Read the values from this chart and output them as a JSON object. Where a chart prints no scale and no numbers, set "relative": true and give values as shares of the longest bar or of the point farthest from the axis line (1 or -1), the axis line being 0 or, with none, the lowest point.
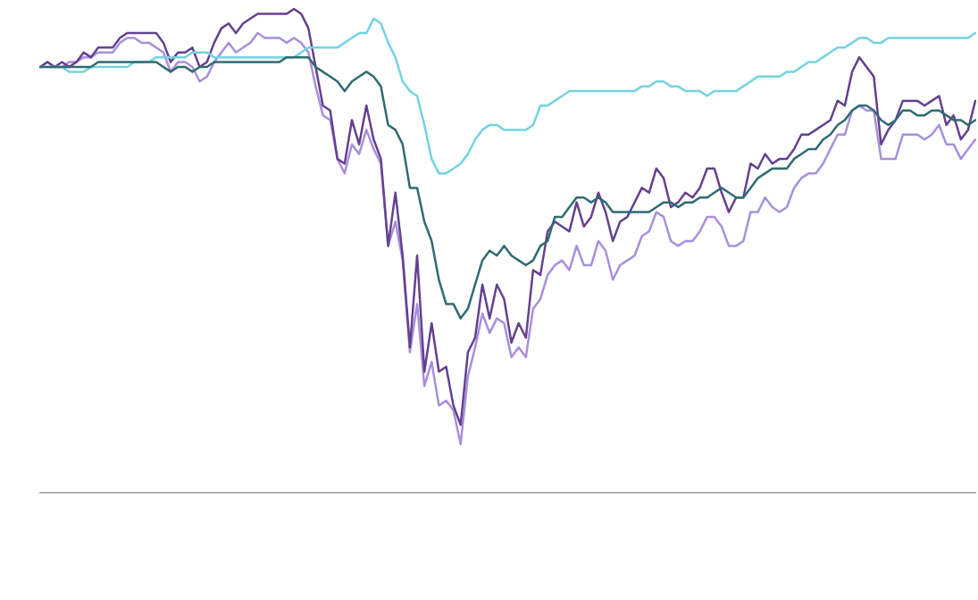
{
  "chart_data": {
    "type": "line",
    "relative": true,
    "grid": false,
    "legend": false,
    "marker": "none",
    "line_style": "solid",
    "categories": [
      null,
      null,
      null,
      null,
      null,
      null,
      null,
      null,
      null,
      null,
      null,
      null,
      null,
      null,
      null,
      null,
      null,
      null,
      null,
      null,
      null,
      null,
      null,
      null,
      null,
      null,
      null,
      null,
      null,
      null,
      null,
      null,
      null,
      null,
      null,
      null,
      null,
      null,
      null,
      null,
      null,
      null,
      null,
      null,
      null,
      null,
      null,
      null,
      null,
      null,
      null,
      null,
      null,
      null,
      null,
      null,
      null,
      null,
      null,
      null,
      null,
      null,
      null,
      null,
      null,
      null,
      null,
      null,
      null,
      null,
      null,
      null,
      null,
      null,
      null,
      null,
      null,
      null,
      null,
      null,
      null,
      null,
      null,
      null,
      null,
      null,
      null,
      null,
      null,
      null,
      null,
      null,
      null,
      null,
      null,
      null,
      null,
      null,
      null,
      null,
      null,
      null,
      null,
      null,
      null,
      null,
      null,
      null,
      null,
      null,
      null,
      null,
      null,
      null,
      null,
      null,
      null,
      null,
      null,
      null,
      null,
      null,
      null,
      null,
      null,
      null,
      null,
      null,
      null,
      null
    ],
    "series": [
      {
        "color": "#a98fdc",
        "values": [
          0.88,
          0.89,
          0.88,
          0.88,
          0.89,
          0.89,
          0.9,
          0.9,
          0.91,
          0.91,
          0.91,
          0.93,
          0.94,
          0.94,
          0.93,
          0.93,
          0.92,
          0.91,
          0.87,
          0.89,
          0.89,
          0.88,
          0.85,
          0.86,
          0.89,
          0.91,
          0.93,
          0.91,
          0.92,
          0.93,
          0.95,
          0.94,
          0.94,
          0.94,
          0.93,
          0.94,
          0.93,
          0.91,
          0.84,
          0.78,
          0.77,
          0.69,
          0.66,
          0.72,
          0.7,
          0.75,
          0.71,
          0.68,
          0.51,
          0.56,
          0.48,
          0.29,
          0.39,
          0.22,
          0.27,
          0.18,
          0.19,
          0.17,
          0.1,
          0.24,
          0.3,
          0.37,
          0.33,
          0.36,
          0.35,
          0.28,
          0.3,
          0.28,
          0.38,
          0.4,
          0.45,
          0.47,
          0.48,
          0.46,
          0.51,
          0.47,
          0.47,
          0.52,
          0.5,
          0.44,
          0.47,
          0.48,
          0.49,
          0.53,
          0.54,
          0.58,
          0.57,
          0.52,
          0.51,
          0.52,
          0.52,
          0.54,
          0.57,
          0.57,
          0.55,
          0.51,
          0.51,
          0.52,
          0.58,
          0.58,
          0.61,
          0.59,
          0.58,
          0.59,
          0.63,
          0.65,
          0.66,
          0.66,
          0.68,
          0.71,
          0.74,
          0.74,
          0.79,
          0.8,
          0.79,
          0.79,
          0.69,
          0.69,
          0.69,
          0.74,
          0.74,
          0.74,
          0.73,
          0.74,
          0.76,
          0.72,
          0.72,
          0.69,
          0.71,
          0.73
        ]
      },
      {
        "color": "#64418f",
        "values": [
          0.88,
          0.89,
          0.88,
          0.89,
          0.88,
          0.89,
          0.91,
          0.9,
          0.92,
          0.92,
          0.92,
          0.94,
          0.95,
          0.95,
          0.95,
          0.95,
          0.95,
          0.93,
          0.89,
          0.91,
          0.91,
          0.92,
          0.88,
          0.89,
          0.93,
          0.96,
          0.97,
          0.95,
          0.97,
          0.98,
          0.99,
          0.99,
          0.99,
          0.99,
          0.99,
          1.0,
          0.99,
          0.96,
          0.88,
          0.8,
          0.79,
          0.69,
          0.68,
          0.77,
          0.72,
          0.8,
          0.73,
          0.69,
          0.51,
          0.62,
          0.49,
          0.3,
          0.49,
          0.25,
          0.35,
          0.25,
          0.26,
          0.18,
          0.14,
          0.29,
          0.32,
          0.43,
          0.36,
          0.43,
          0.4,
          0.31,
          0.35,
          0.32,
          0.46,
          0.45,
          0.54,
          0.56,
          0.55,
          0.54,
          0.6,
          0.55,
          0.57,
          0.62,
          0.58,
          0.52,
          0.56,
          0.57,
          0.6,
          0.63,
          0.62,
          0.67,
          0.65,
          0.59,
          0.6,
          0.62,
          0.61,
          0.63,
          0.67,
          0.67,
          0.62,
          0.58,
          0.61,
          0.61,
          0.68,
          0.67,
          0.7,
          0.68,
          0.69,
          0.69,
          0.71,
          0.74,
          0.74,
          0.75,
          0.76,
          0.77,
          0.81,
          0.8,
          0.87,
          0.9,
          0.88,
          0.86,
          0.72,
          0.75,
          0.77,
          0.81,
          0.81,
          0.81,
          0.8,
          0.81,
          0.82,
          0.76,
          0.78,
          0.73,
          0.75,
          0.81
        ]
      },
      {
        "color": "#72d3e2",
        "values": [
          0.88,
          0.88,
          0.88,
          0.88,
          0.87,
          0.87,
          0.87,
          0.88,
          0.88,
          0.88,
          0.88,
          0.88,
          0.88,
          0.89,
          0.89,
          0.89,
          0.9,
          0.9,
          0.9,
          0.9,
          0.9,
          0.91,
          0.91,
          0.91,
          0.9,
          0.9,
          0.9,
          0.9,
          0.9,
          0.9,
          0.9,
          0.9,
          0.9,
          0.9,
          0.9,
          0.9,
          0.91,
          0.92,
          0.92,
          0.92,
          0.92,
          0.92,
          0.93,
          0.94,
          0.95,
          0.95,
          0.98,
          0.97,
          0.93,
          0.9,
          0.85,
          0.83,
          0.82,
          0.76,
          0.69,
          0.66,
          0.66,
          0.67,
          0.68,
          0.7,
          0.73,
          0.75,
          0.76,
          0.76,
          0.75,
          0.75,
          0.75,
          0.75,
          0.76,
          0.8,
          0.8,
          0.81,
          0.82,
          0.83,
          0.83,
          0.83,
          0.83,
          0.83,
          0.83,
          0.83,
          0.83,
          0.83,
          0.83,
          0.84,
          0.84,
          0.85,
          0.85,
          0.84,
          0.84,
          0.83,
          0.83,
          0.83,
          0.82,
          0.83,
          0.83,
          0.83,
          0.83,
          0.84,
          0.85,
          0.86,
          0.86,
          0.86,
          0.86,
          0.87,
          0.87,
          0.88,
          0.89,
          0.89,
          0.9,
          0.91,
          0.92,
          0.92,
          0.93,
          0.94,
          0.94,
          0.93,
          0.93,
          0.94,
          0.94,
          0.94,
          0.94,
          0.94,
          0.94,
          0.94,
          0.94,
          0.94,
          0.94,
          0.94,
          0.94,
          0.95
        ]
      },
      {
        "color": "#2f6b73",
        "values": [
          0.88,
          0.88,
          0.88,
          0.88,
          0.88,
          0.88,
          0.88,
          0.88,
          0.89,
          0.89,
          0.89,
          0.89,
          0.89,
          0.89,
          0.89,
          0.89,
          0.89,
          0.88,
          0.87,
          0.88,
          0.88,
          0.87,
          0.88,
          0.88,
          0.89,
          0.89,
          0.89,
          0.89,
          0.89,
          0.89,
          0.89,
          0.89,
          0.89,
          0.89,
          0.9,
          0.9,
          0.9,
          0.9,
          0.88,
          0.87,
          0.86,
          0.85,
          0.83,
          0.85,
          0.86,
          0.87,
          0.86,
          0.84,
          0.76,
          0.75,
          0.72,
          0.63,
          0.63,
          0.56,
          0.52,
          0.44,
          0.39,
          0.39,
          0.36,
          0.38,
          0.43,
          0.48,
          0.5,
          0.49,
          0.51,
          0.49,
          0.48,
          0.47,
          0.48,
          0.51,
          0.52,
          0.57,
          0.57,
          0.59,
          0.61,
          0.61,
          0.6,
          0.61,
          0.6,
          0.58,
          0.58,
          0.58,
          0.58,
          0.58,
          0.58,
          0.59,
          0.6,
          0.6,
          0.59,
          0.6,
          0.6,
          0.61,
          0.61,
          0.62,
          0.63,
          0.62,
          0.61,
          0.61,
          0.63,
          0.65,
          0.66,
          0.67,
          0.67,
          0.67,
          0.69,
          0.7,
          0.71,
          0.71,
          0.73,
          0.74,
          0.76,
          0.77,
          0.79,
          0.8,
          0.8,
          0.79,
          0.77,
          0.76,
          0.77,
          0.79,
          0.79,
          0.78,
          0.78,
          0.79,
          0.79,
          0.78,
          0.77,
          0.77,
          0.76,
          0.77
        ]
      }
    ]
  }
}
